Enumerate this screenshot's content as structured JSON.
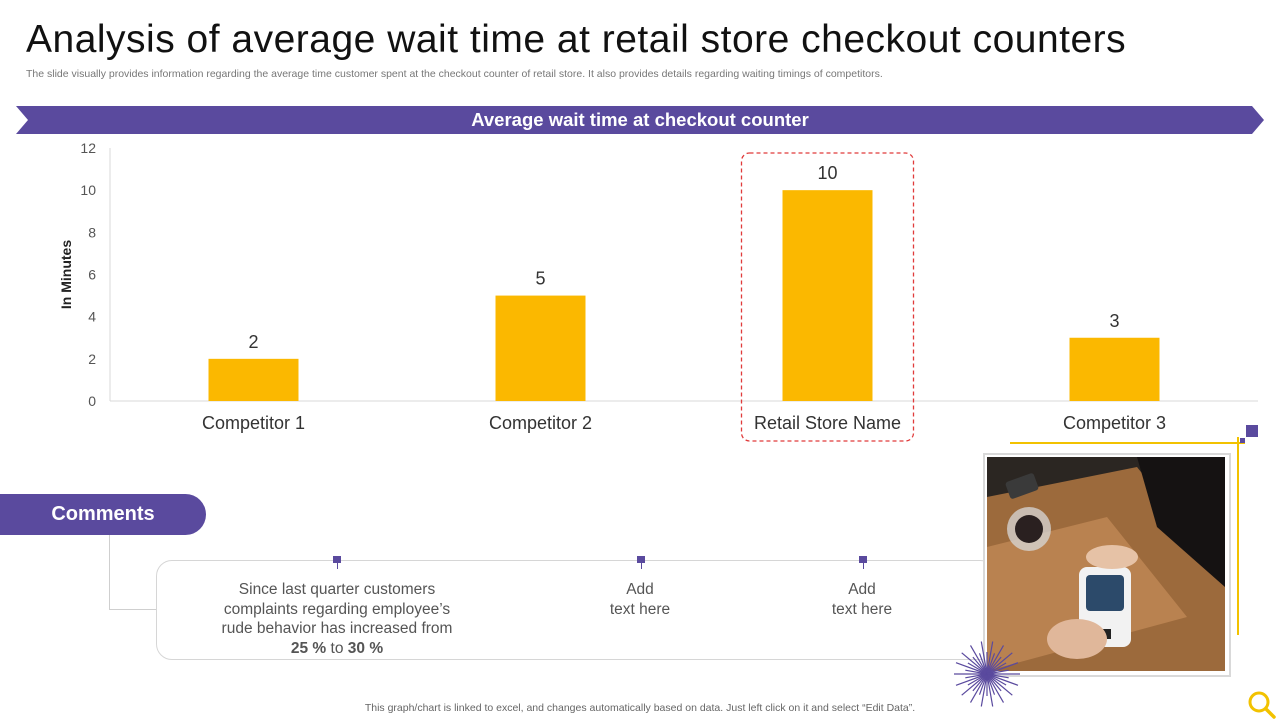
{
  "title": "Analysis of average wait time at retail store checkout counters",
  "subtitle": "The slide visually provides information regarding the average time customer spent at the checkout counter of retail store. It also provides details regarding waiting timings of competitors.",
  "banner": {
    "label": "Average wait time at checkout counter"
  },
  "colors": {
    "accent": "#5a4a9e",
    "bar": "#fbb800",
    "highlight": "#e03b3b",
    "gold": "#f2c200"
  },
  "chart_data": {
    "type": "bar",
    "categories": [
      "Competitor 1",
      "Competitor 2",
      "Retail Store Name",
      "Competitor 3"
    ],
    "values": [
      2,
      5,
      10,
      3
    ],
    "data_labels": [
      "2",
      "5",
      "10",
      "3"
    ],
    "title": "Average wait time at checkout counter",
    "xlabel": "",
    "ylabel": "In Minutes",
    "ylim": [
      0,
      12
    ],
    "yticks": [
      "0",
      "2",
      "4",
      "6",
      "8",
      "10",
      "12"
    ],
    "highlighted_category": "Retail Store Name",
    "grid": false
  },
  "comments": {
    "heading": "Comments",
    "items": [
      {
        "lines": [
          "Since last quarter customers",
          "complaints regarding employee’s",
          "rude behavior has increased from"
        ],
        "bold_from": "25 %",
        "mid": " to ",
        "bold_to": "30 %"
      },
      {
        "lines": [
          "Add",
          "text here"
        ]
      },
      {
        "lines": [
          "Add",
          "text here"
        ]
      }
    ]
  },
  "footer": "This graph/chart is linked to excel,  and changes automatically based on data. Just left click on it and select “Edit Data”.",
  "icons": [
    "search-icon",
    "starburst-decoration",
    "card-payment-photo"
  ]
}
